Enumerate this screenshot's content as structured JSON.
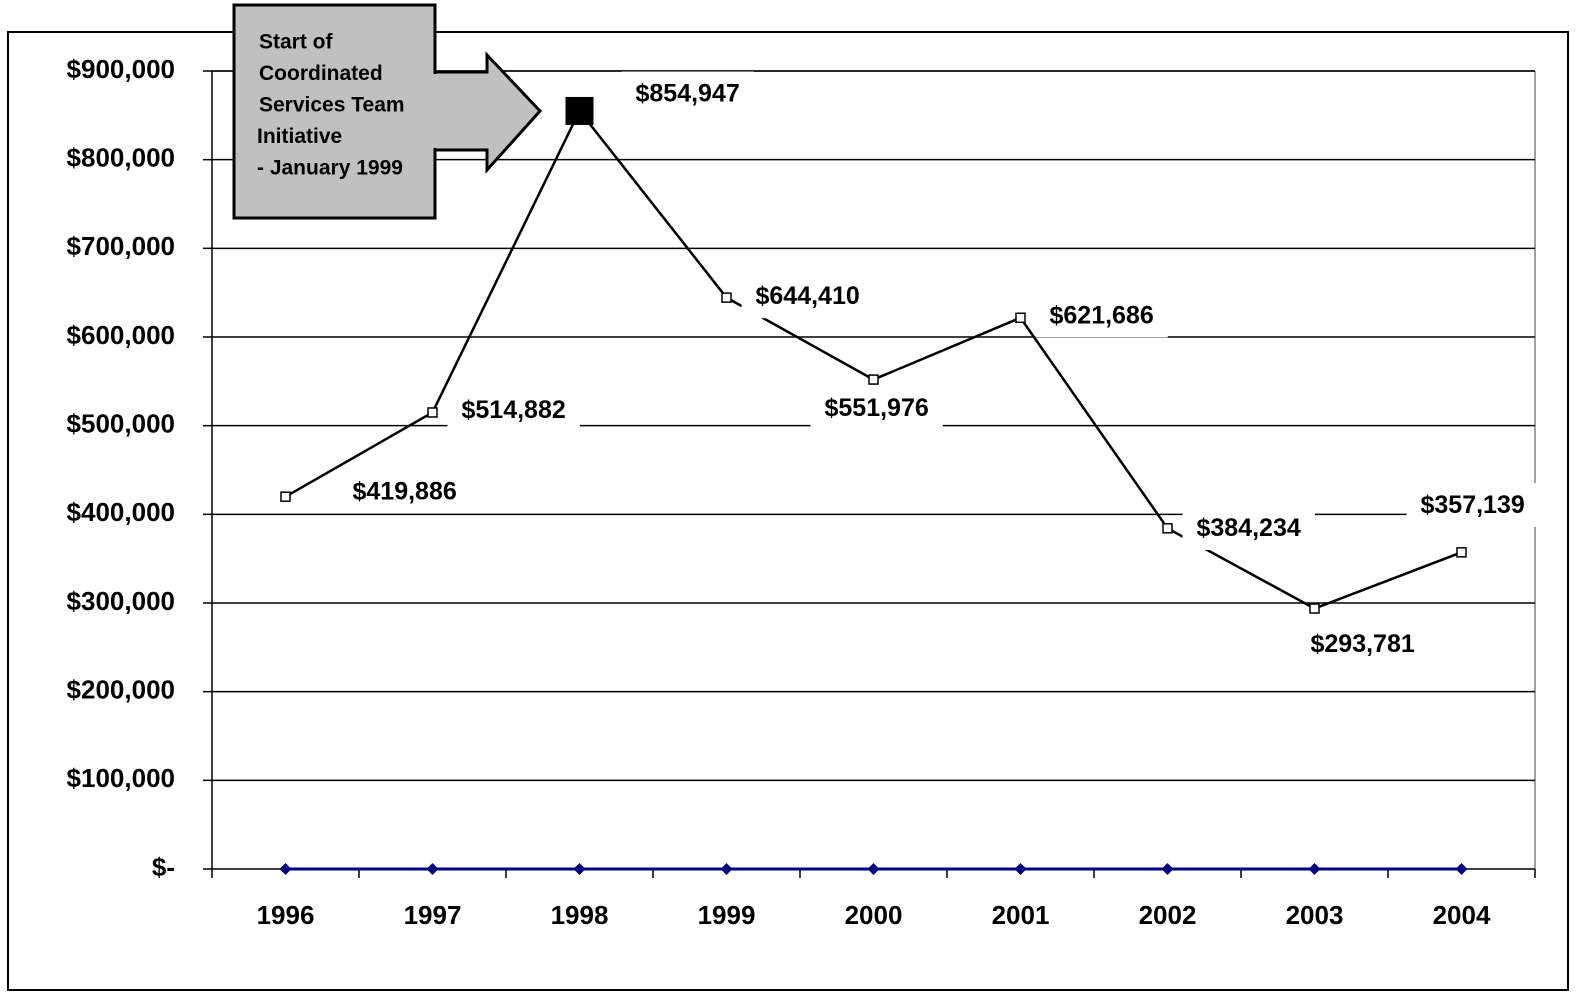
{
  "chart_data": {
    "type": "line",
    "annotation": [
      "Start of",
      "Coordinated",
      "Services Team",
      "Initiative",
      "- January 1999"
    ],
    "categories": [
      "1996",
      "1997",
      "1998",
      "1999",
      "2000",
      "2001",
      "2002",
      "2003",
      "2004"
    ],
    "series": [
      {
        "color": "#000000",
        "values": [
          419886,
          514882,
          854947,
          644410,
          551976,
          621686,
          384234,
          293781,
          357139
        ],
        "value_labels": [
          "$419,886",
          "$514,882",
          "$854,947",
          "$644,410",
          "$551,976",
          "$621,686",
          "$384,234",
          "$293,781",
          "$357,139"
        ],
        "highlight_index": 2
      },
      {
        "color": "#000080",
        "values": [
          0,
          0,
          0,
          0,
          0,
          0,
          0,
          0,
          0
        ]
      }
    ],
    "ylim": [
      0,
      900000
    ],
    "yticks": [
      {
        "value": 0,
        "label": "$-"
      },
      {
        "value": 100000,
        "label": "$100,000"
      },
      {
        "value": 200000,
        "label": "$200,000"
      },
      {
        "value": 300000,
        "label": "$300,000"
      },
      {
        "value": 400000,
        "label": "$400,000"
      },
      {
        "value": 500000,
        "label": "$500,000"
      },
      {
        "value": 600000,
        "label": "$600,000"
      },
      {
        "value": 700000,
        "label": "$700,000"
      },
      {
        "value": 800000,
        "label": "$800,000"
      },
      {
        "value": 900000,
        "label": "$900,000"
      }
    ],
    "grid": true
  }
}
